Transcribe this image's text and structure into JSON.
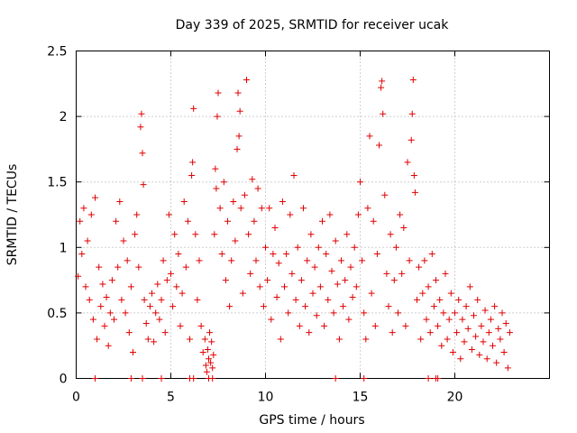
{
  "chart_data": {
    "type": "scatter",
    "title": "Day 339 of 2025, SRMTID for receiver ucak",
    "xlabel": "GPS time / hours",
    "ylabel": "SRMTID / TECUs",
    "xlim": [
      0,
      25
    ],
    "ylim": [
      0,
      2.5
    ],
    "x_ticks": [
      0,
      5,
      10,
      15,
      20
    ],
    "x_tick_labels": [
      "0",
      "5",
      "10",
      "15",
      "20"
    ],
    "y_ticks": [
      0,
      0.5,
      1,
      1.5,
      2,
      2.5
    ],
    "y_tick_labels": [
      "0",
      "0.5",
      "1",
      "1.5",
      "2",
      "2.5"
    ],
    "grid": true,
    "marker": "+",
    "series": [
      {
        "name": "SRMTID",
        "color": "#e00000",
        "points": [
          [
            0.1,
            0.78
          ],
          [
            0.2,
            1.2
          ],
          [
            0.3,
            0.95
          ],
          [
            0.4,
            1.3
          ],
          [
            0.5,
            0.7
          ],
          [
            0.6,
            1.05
          ],
          [
            0.7,
            0.6
          ],
          [
            0.8,
            1.25
          ],
          [
            0.9,
            0.45
          ],
          [
            1.0,
            1.38
          ],
          [
            1.1,
            0.3
          ],
          [
            1.2,
            0.85
          ],
          [
            1.3,
            0.55
          ],
          [
            1.4,
            0.72
          ],
          [
            1.5,
            0.4
          ],
          [
            1.6,
            0.62
          ],
          [
            1.7,
            0.25
          ],
          [
            1.8,
            0.5
          ],
          [
            1.9,
            0.75
          ],
          [
            2.0,
            0.45
          ],
          [
            2.1,
            1.2
          ],
          [
            2.2,
            0.85
          ],
          [
            2.3,
            1.35
          ],
          [
            2.4,
            0.6
          ],
          [
            2.5,
            1.05
          ],
          [
            2.6,
            0.5
          ],
          [
            2.7,
            0.9
          ],
          [
            2.8,
            0.35
          ],
          [
            2.9,
            0.7
          ],
          [
            3.0,
            0.2
          ],
          [
            3.1,
            1.1
          ],
          [
            3.2,
            1.25
          ],
          [
            3.3,
            0.85
          ],
          [
            3.4,
            1.92
          ],
          [
            3.45,
            2.02
          ],
          [
            3.5,
            1.72
          ],
          [
            3.55,
            1.48
          ],
          [
            3.6,
            0.6
          ],
          [
            3.7,
            0.42
          ],
          [
            3.8,
            0.3
          ],
          [
            3.9,
            0.55
          ],
          [
            4.0,
            0.65
          ],
          [
            4.1,
            0.28
          ],
          [
            4.2,
            0.5
          ],
          [
            4.3,
            0.72
          ],
          [
            4.4,
            0.45
          ],
          [
            4.5,
            0.6
          ],
          [
            4.6,
            0.9
          ],
          [
            4.7,
            0.35
          ],
          [
            4.8,
            0.75
          ],
          [
            4.9,
            1.25
          ],
          [
            5.0,
            0.8
          ],
          [
            5.1,
            0.55
          ],
          [
            5.2,
            1.1
          ],
          [
            5.3,
            0.7
          ],
          [
            5.4,
            0.95
          ],
          [
            5.5,
            0.4
          ],
          [
            5.6,
            0.65
          ],
          [
            5.7,
            1.35
          ],
          [
            5.8,
            0.85
          ],
          [
            5.9,
            1.2
          ],
          [
            6.0,
            0.3
          ],
          [
            6.1,
            1.55
          ],
          [
            6.15,
            1.65
          ],
          [
            6.2,
            2.06
          ],
          [
            6.3,
            1.1
          ],
          [
            6.4,
            0.6
          ],
          [
            6.5,
            0.9
          ],
          [
            6.6,
            0.4
          ],
          [
            6.7,
            0.2
          ],
          [
            6.8,
            0.3
          ],
          [
            6.85,
            0.1
          ],
          [
            6.9,
            0.05
          ],
          [
            6.95,
            0.22
          ],
          [
            7.0,
            0.15
          ],
          [
            7.05,
            0.35
          ],
          [
            7.1,
            0.12
          ],
          [
            7.15,
            0.28
          ],
          [
            7.2,
            0.08
          ],
          [
            7.25,
            0.18
          ],
          [
            7.3,
            1.1
          ],
          [
            7.35,
            1.6
          ],
          [
            7.4,
            1.45
          ],
          [
            7.45,
            2.0
          ],
          [
            7.5,
            2.18
          ],
          [
            7.6,
            1.3
          ],
          [
            7.7,
            0.95
          ],
          [
            7.8,
            1.5
          ],
          [
            7.9,
            0.75
          ],
          [
            8.0,
            1.2
          ],
          [
            8.1,
            0.55
          ],
          [
            8.2,
            0.9
          ],
          [
            8.3,
            1.35
          ],
          [
            8.4,
            1.05
          ],
          [
            8.5,
            1.75
          ],
          [
            8.55,
            2.18
          ],
          [
            8.6,
            1.85
          ],
          [
            8.65,
            2.04
          ],
          [
            8.7,
            1.3
          ],
          [
            8.8,
            0.65
          ],
          [
            8.9,
            1.4
          ],
          [
            9.0,
            2.28
          ],
          [
            9.1,
            1.1
          ],
          [
            9.2,
            0.8
          ],
          [
            9.3,
            1.52
          ],
          [
            9.4,
            1.2
          ],
          [
            9.5,
            0.9
          ],
          [
            9.6,
            1.45
          ],
          [
            9.7,
            0.7
          ],
          [
            9.8,
            1.3
          ],
          [
            9.9,
            0.55
          ],
          [
            10.0,
            1.0
          ],
          [
            10.1,
            0.75
          ],
          [
            10.2,
            1.3
          ],
          [
            10.3,
            0.45
          ],
          [
            10.4,
            0.95
          ],
          [
            10.5,
            1.15
          ],
          [
            10.6,
            0.62
          ],
          [
            10.7,
            0.88
          ],
          [
            10.8,
            0.3
          ],
          [
            10.9,
            1.35
          ],
          [
            11.0,
            0.7
          ],
          [
            11.1,
            0.95
          ],
          [
            11.2,
            0.5
          ],
          [
            11.3,
            1.25
          ],
          [
            11.4,
            0.8
          ],
          [
            11.5,
            1.55
          ],
          [
            11.6,
            0.6
          ],
          [
            11.7,
            1.0
          ],
          [
            11.8,
            0.4
          ],
          [
            11.9,
            0.75
          ],
          [
            12.0,
            1.3
          ],
          [
            12.1,
            0.55
          ],
          [
            12.2,
            0.9
          ],
          [
            12.3,
            0.35
          ],
          [
            12.4,
            1.1
          ],
          [
            12.5,
            0.65
          ],
          [
            12.6,
            0.85
          ],
          [
            12.7,
            0.48
          ],
          [
            12.8,
            1.0
          ],
          [
            12.9,
            0.7
          ],
          [
            13.0,
            1.2
          ],
          [
            13.1,
            0.4
          ],
          [
            13.2,
            0.95
          ],
          [
            13.3,
            0.6
          ],
          [
            13.4,
            1.25
          ],
          [
            13.5,
            0.82
          ],
          [
            13.6,
            0.5
          ],
          [
            13.7,
            1.05
          ],
          [
            13.8,
            0.72
          ],
          [
            13.9,
            0.3
          ],
          [
            14.0,
            0.9
          ],
          [
            14.1,
            0.55
          ],
          [
            14.2,
            0.75
          ],
          [
            14.3,
            1.1
          ],
          [
            14.4,
            0.45
          ],
          [
            14.5,
            0.85
          ],
          [
            14.6,
            0.62
          ],
          [
            14.7,
            1.0
          ],
          [
            14.8,
            0.7
          ],
          [
            14.9,
            1.25
          ],
          [
            15.0,
            1.5
          ],
          [
            15.1,
            0.9
          ],
          [
            15.2,
            0.5
          ],
          [
            15.3,
            0.3
          ],
          [
            15.4,
            1.3
          ],
          [
            15.5,
            1.85
          ],
          [
            15.6,
            0.65
          ],
          [
            15.7,
            1.2
          ],
          [
            15.8,
            0.4
          ],
          [
            15.9,
            0.95
          ],
          [
            16.0,
            1.78
          ],
          [
            16.1,
            2.22
          ],
          [
            16.15,
            2.27
          ],
          [
            16.2,
            2.02
          ],
          [
            16.3,
            1.4
          ],
          [
            16.4,
            0.8
          ],
          [
            16.5,
            0.55
          ],
          [
            16.6,
            1.1
          ],
          [
            16.7,
            0.35
          ],
          [
            16.8,
            0.75
          ],
          [
            16.9,
            1.0
          ],
          [
            17.0,
            0.5
          ],
          [
            17.1,
            1.25
          ],
          [
            17.2,
            0.8
          ],
          [
            17.3,
            1.15
          ],
          [
            17.4,
            0.4
          ],
          [
            17.5,
            1.65
          ],
          [
            17.6,
            0.9
          ],
          [
            17.7,
            1.82
          ],
          [
            17.75,
            2.02
          ],
          [
            17.8,
            2.28
          ],
          [
            17.85,
            1.55
          ],
          [
            17.9,
            1.42
          ],
          [
            18.0,
            0.6
          ],
          [
            18.1,
            0.85
          ],
          [
            18.2,
            0.3
          ],
          [
            18.3,
            0.65
          ],
          [
            18.4,
            0.9
          ],
          [
            18.5,
            0.45
          ],
          [
            18.6,
            0.7
          ],
          [
            18.7,
            0.35
          ],
          [
            18.8,
            0.95
          ],
          [
            18.9,
            0.55
          ],
          [
            19.0,
            0.75
          ],
          [
            19.1,
            0.4
          ],
          [
            19.2,
            0.6
          ],
          [
            19.3,
            0.25
          ],
          [
            19.4,
            0.5
          ],
          [
            19.5,
            0.8
          ],
          [
            19.6,
            0.3
          ],
          [
            19.7,
            0.45
          ],
          [
            19.8,
            0.65
          ],
          [
            19.9,
            0.2
          ],
          [
            20.0,
            0.5
          ],
          [
            20.1,
            0.35
          ],
          [
            20.2,
            0.6
          ],
          [
            20.3,
            0.15
          ],
          [
            20.4,
            0.45
          ],
          [
            20.5,
            0.28
          ],
          [
            20.6,
            0.55
          ],
          [
            20.7,
            0.38
          ],
          [
            20.8,
            0.7
          ],
          [
            20.9,
            0.22
          ],
          [
            21.0,
            0.48
          ],
          [
            21.1,
            0.32
          ],
          [
            21.2,
            0.6
          ],
          [
            21.3,
            0.18
          ],
          [
            21.4,
            0.4
          ],
          [
            21.5,
            0.28
          ],
          [
            21.6,
            0.52
          ],
          [
            21.7,
            0.15
          ],
          [
            21.8,
            0.35
          ],
          [
            21.9,
            0.45
          ],
          [
            22.0,
            0.25
          ],
          [
            22.1,
            0.55
          ],
          [
            22.2,
            0.12
          ],
          [
            22.3,
            0.38
          ],
          [
            22.4,
            0.3
          ],
          [
            22.5,
            0.5
          ],
          [
            22.6,
            0.2
          ],
          [
            22.7,
            0.42
          ],
          [
            22.8,
            0.08
          ],
          [
            22.9,
            0.35
          ],
          [
            1.0,
            0.0
          ],
          [
            2.9,
            0.0
          ],
          [
            3.5,
            0.0
          ],
          [
            4.5,
            0.0
          ],
          [
            6.0,
            0.0
          ],
          [
            6.2,
            0.0
          ],
          [
            7.0,
            0.0
          ],
          [
            7.2,
            0.0
          ],
          [
            13.7,
            0.0
          ],
          [
            15.2,
            0.0
          ],
          [
            18.6,
            0.0
          ],
          [
            19.0,
            0.0
          ],
          [
            19.1,
            0.0
          ]
        ]
      }
    ]
  }
}
